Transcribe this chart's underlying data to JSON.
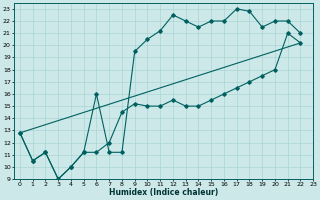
{
  "xlabel": "Humidex (Indice chaleur)",
  "bg_color": "#cce8e8",
  "line_color": "#006060",
  "grid_color": "#aad4d4",
  "xlim": [
    -0.5,
    23
  ],
  "ylim": [
    9,
    23.5
  ],
  "xticks": [
    0,
    1,
    2,
    3,
    4,
    5,
    6,
    7,
    8,
    9,
    10,
    11,
    12,
    13,
    14,
    15,
    16,
    17,
    18,
    19,
    20,
    21,
    22,
    23
  ],
  "yticks": [
    9,
    10,
    11,
    12,
    13,
    14,
    15,
    16,
    17,
    18,
    19,
    20,
    21,
    22,
    23
  ],
  "line1_x": [
    0,
    1,
    2,
    3,
    4,
    5,
    6,
    7,
    8,
    9,
    10,
    11,
    12,
    13,
    14,
    15,
    16,
    17,
    18,
    19,
    20,
    21,
    22
  ],
  "line1_y": [
    12.8,
    10.5,
    11.2,
    9.0,
    10.0,
    11.2,
    16.0,
    11.2,
    11.2,
    19.5,
    20.5,
    21.2,
    22.5,
    22.0,
    21.5,
    22.0,
    22.0,
    23.0,
    22.8,
    21.5,
    22.0,
    22.0,
    21.0
  ],
  "line2_x": [
    0,
    1,
    2,
    3,
    4,
    5,
    6,
    7,
    8,
    9,
    10,
    11,
    12,
    13,
    14,
    15,
    16,
    17,
    18,
    19,
    20,
    21,
    22
  ],
  "line2_y": [
    12.8,
    10.5,
    11.2,
    9.0,
    10.0,
    11.2,
    11.2,
    12.0,
    14.5,
    15.2,
    15.0,
    15.0,
    15.5,
    15.0,
    15.0,
    15.5,
    16.0,
    16.5,
    17.0,
    17.5,
    18.0,
    21.0,
    20.2
  ],
  "line3_x": [
    0,
    22
  ],
  "line3_y": [
    12.8,
    20.2
  ]
}
